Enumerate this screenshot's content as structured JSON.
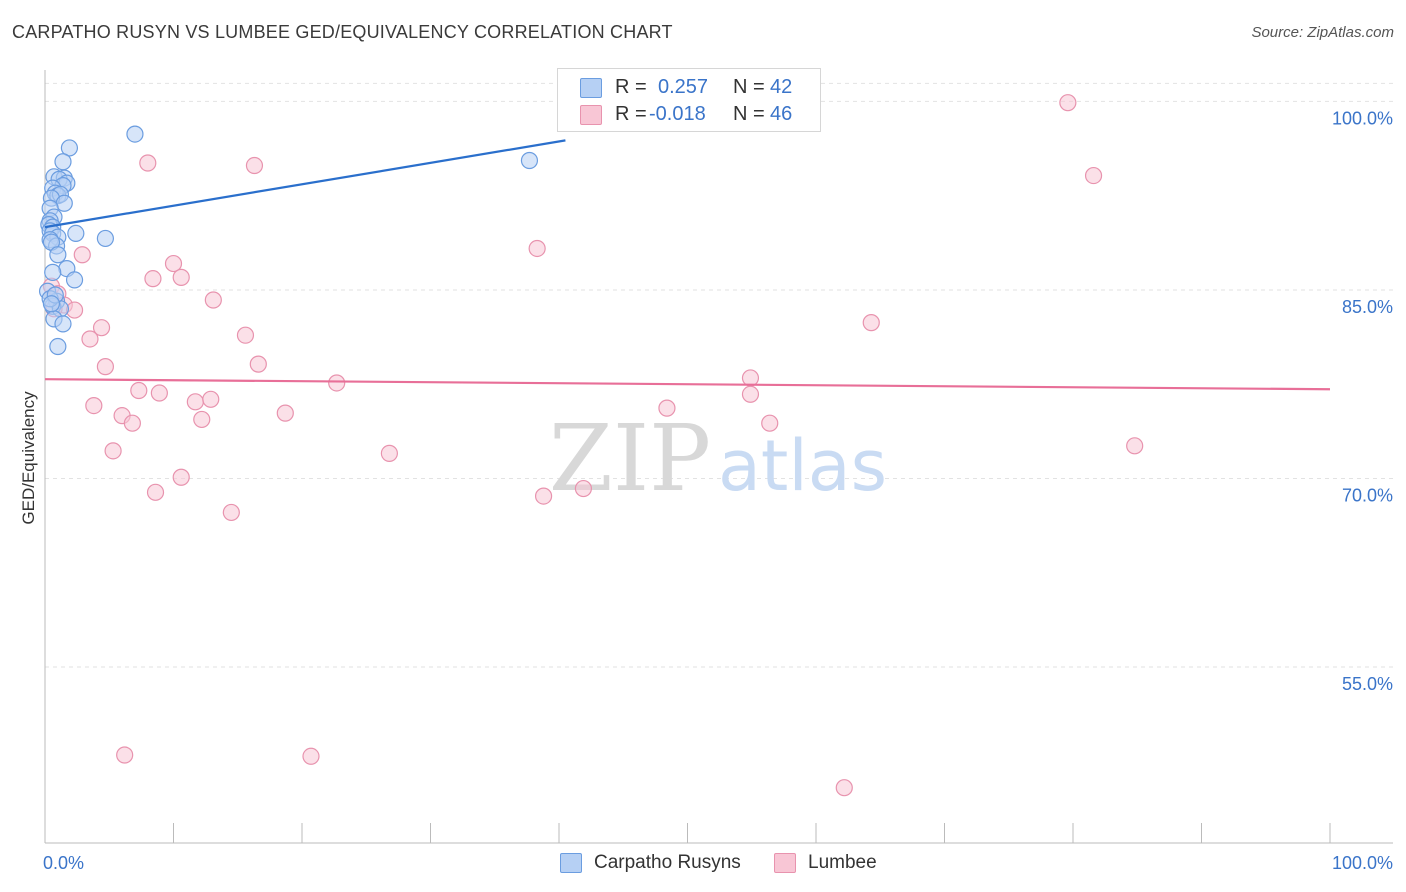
{
  "title": "CARPATHO RUSYN VS LUMBEE GED/EQUIVALENCY CORRELATION CHART",
  "source": "Source: ZipAtlas.com",
  "watermark": {
    "part1": "ZIP",
    "part2": "atlas"
  },
  "legend": {
    "rows": [
      {
        "r_label": "R =",
        "r_value": "0.257",
        "n_label": "N =",
        "n_value": "42"
      },
      {
        "r_label": "R =",
        "r_value": "-0.018",
        "n_label": "N =",
        "n_value": "46"
      }
    ]
  },
  "bottom_legend": [
    "Carpatho Rusyns",
    "Lumbee"
  ],
  "colors": {
    "blue_fill": "#b6d0f4",
    "blue_stroke": "#6b9de0",
    "blue_line": "#2a6fcc",
    "pink_fill": "#f8c6d5",
    "pink_stroke": "#e893ae",
    "pink_line": "#e86f98",
    "tick_text": "#3a74c9",
    "grid": "#e2e2e2"
  },
  "chart_data": {
    "type": "scatter",
    "title": "CARPATHO RUSYN VS LUMBEE GED/EQUIVALENCY CORRELATION CHART",
    "xlabel": "",
    "ylabel": "GED/Equivalency",
    "xlim": [
      0,
      100
    ],
    "ylim": [
      41,
      102.5
    ],
    "x_tick_labels": [
      "0.0%",
      "100.0%"
    ],
    "y_ticks": [
      55,
      70,
      85,
      100
    ],
    "y_tick_labels": [
      "55.0%",
      "70.0%",
      "85.0%",
      "100.0%"
    ],
    "grid": true,
    "legend_position": "top-center",
    "series": [
      {
        "name": "Carpatho Rusyns",
        "color": "blue",
        "r": 0.257,
        "n": 42,
        "trend": {
          "x": [
            0,
            40.5
          ],
          "y": [
            90.0,
            96.9
          ]
        },
        "points": [
          [
            7.0,
            97.4
          ],
          [
            1.9,
            96.3
          ],
          [
            1.4,
            95.2
          ],
          [
            37.7,
            95.3
          ],
          [
            0.7,
            94.0
          ],
          [
            1.5,
            93.9
          ],
          [
            1.1,
            93.8
          ],
          [
            1.7,
            93.5
          ],
          [
            1.4,
            93.3
          ],
          [
            0.6,
            93.1
          ],
          [
            0.8,
            92.7
          ],
          [
            1.0,
            92.5
          ],
          [
            1.2,
            92.6
          ],
          [
            0.5,
            92.3
          ],
          [
            1.5,
            91.9
          ],
          [
            0.4,
            91.5
          ],
          [
            0.7,
            90.8
          ],
          [
            0.4,
            90.5
          ],
          [
            0.3,
            90.2
          ],
          [
            0.6,
            90.0
          ],
          [
            0.4,
            89.7
          ],
          [
            0.6,
            89.5
          ],
          [
            1.0,
            89.2
          ],
          [
            2.4,
            89.5
          ],
          [
            4.7,
            89.1
          ],
          [
            0.4,
            89.0
          ],
          [
            0.9,
            88.5
          ],
          [
            0.5,
            88.8
          ],
          [
            1.0,
            87.8
          ],
          [
            1.7,
            86.7
          ],
          [
            0.6,
            86.4
          ],
          [
            2.3,
            85.8
          ],
          [
            0.2,
            84.9
          ],
          [
            0.9,
            84.1
          ],
          [
            0.6,
            83.7
          ],
          [
            1.2,
            83.5
          ],
          [
            0.7,
            82.7
          ],
          [
            1.4,
            82.3
          ],
          [
            1.0,
            80.5
          ],
          [
            0.4,
            84.3
          ],
          [
            0.8,
            84.6
          ],
          [
            0.5,
            83.9
          ]
        ]
      },
      {
        "name": "Lumbee",
        "color": "pink",
        "r": -0.018,
        "n": 46,
        "trend": {
          "x": [
            0,
            100
          ],
          "y": [
            77.9,
            77.1
          ]
        },
        "points": [
          [
            79.6,
            99.9
          ],
          [
            8.0,
            95.1
          ],
          [
            16.3,
            94.9
          ],
          [
            81.6,
            94.1
          ],
          [
            38.3,
            88.3
          ],
          [
            2.9,
            87.8
          ],
          [
            10.0,
            87.1
          ],
          [
            8.4,
            85.9
          ],
          [
            10.6,
            86.0
          ],
          [
            0.5,
            85.3
          ],
          [
            1.0,
            84.7
          ],
          [
            13.1,
            84.2
          ],
          [
            1.5,
            83.8
          ],
          [
            2.3,
            83.4
          ],
          [
            0.7,
            83.5
          ],
          [
            4.4,
            82.0
          ],
          [
            3.5,
            81.1
          ],
          [
            15.6,
            81.4
          ],
          [
            64.3,
            82.4
          ],
          [
            4.7,
            78.9
          ],
          [
            16.6,
            79.1
          ],
          [
            54.9,
            78.0
          ],
          [
            22.7,
            77.6
          ],
          [
            7.3,
            77.0
          ],
          [
            8.9,
            76.8
          ],
          [
            54.9,
            76.7
          ],
          [
            11.7,
            76.1
          ],
          [
            12.9,
            76.3
          ],
          [
            3.8,
            75.8
          ],
          [
            48.4,
            75.6
          ],
          [
            18.7,
            75.2
          ],
          [
            6.0,
            75.0
          ],
          [
            12.2,
            74.7
          ],
          [
            6.8,
            74.4
          ],
          [
            56.4,
            74.4
          ],
          [
            84.8,
            72.6
          ],
          [
            5.3,
            72.2
          ],
          [
            26.8,
            72.0
          ],
          [
            10.6,
            70.1
          ],
          [
            8.6,
            68.9
          ],
          [
            41.9,
            69.2
          ],
          [
            38.8,
            68.6
          ],
          [
            14.5,
            67.3
          ],
          [
            6.2,
            48.0
          ],
          [
            20.7,
            47.9
          ],
          [
            62.2,
            45.4
          ]
        ]
      }
    ]
  }
}
